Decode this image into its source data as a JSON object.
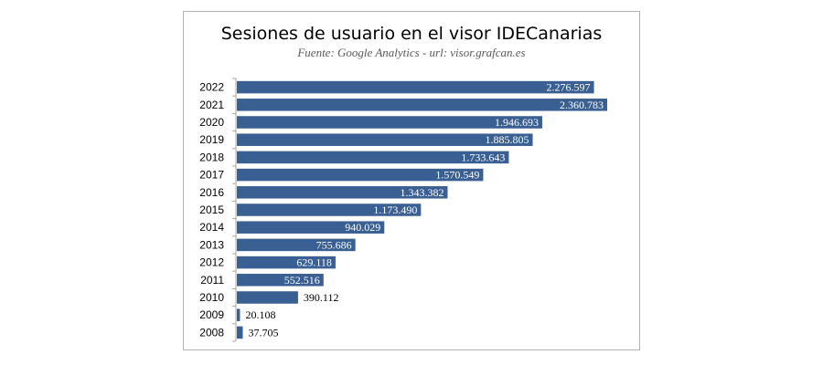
{
  "colors": {
    "bar": "#3a5f92",
    "axis": "#a6a6a6",
    "inside_label": "#ffffff",
    "outside_label": "#000000"
  },
  "chart_data": {
    "type": "bar",
    "orientation": "horizontal",
    "title": "Sesiones de usuario en el visor IDECanarias",
    "subtitle_source_label": "Fuente",
    "subtitle_source_value": ": Google Analytics - ",
    "subtitle_url_label": "url",
    "subtitle_url_value": ": visor.grafcan.es",
    "categories": [
      "2022",
      "2021",
      "2020",
      "2019",
      "2018",
      "2017",
      "2016",
      "2015",
      "2014",
      "2013",
      "2012",
      "2011",
      "2010",
      "2009",
      "2008"
    ],
    "values": [
      2276597,
      2360783,
      1946693,
      1885805,
      1733643,
      1570549,
      1343382,
      1173490,
      940029,
      755686,
      629118,
      552516,
      390112,
      20108,
      37705
    ],
    "value_labels": [
      "2.276.597",
      "2.360.783",
      "1.946.693",
      "1.885.805",
      "1.733.643",
      "1.570.549",
      "1.343.382",
      "1.173.490",
      "940.029",
      "755.686",
      "629.118",
      "552.516",
      "390.112",
      "20.108",
      "37.705"
    ],
    "xlim": [
      0,
      2360783
    ],
    "grid": false,
    "legend": "none"
  }
}
